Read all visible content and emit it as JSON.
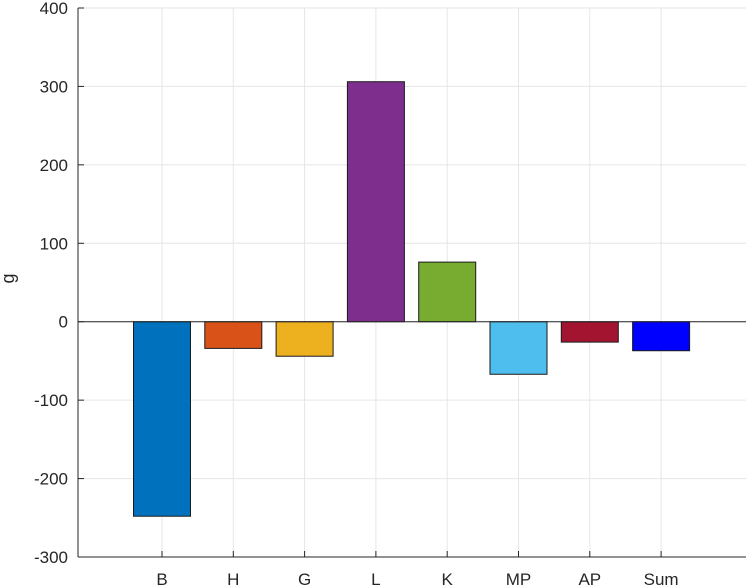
{
  "chart_data": {
    "type": "bar",
    "title": "",
    "xlabel": "",
    "ylabel": "g",
    "categories": [
      "B",
      "H",
      "G",
      "L",
      "K",
      "MP",
      "AP",
      "Sum"
    ],
    "values": [
      -248,
      -34,
      -44,
      306,
      76,
      -67,
      -26,
      -37
    ],
    "colors": [
      "#0072BD",
      "#D95319",
      "#EDB120",
      "#7E2F8E",
      "#77AC30",
      "#4DBEEE",
      "#A2142F",
      "#0000FF"
    ],
    "ylim": [
      -300,
      400
    ],
    "yticks": [
      -300,
      -200,
      -100,
      0,
      100,
      200,
      300,
      400
    ],
    "grid": true
  }
}
